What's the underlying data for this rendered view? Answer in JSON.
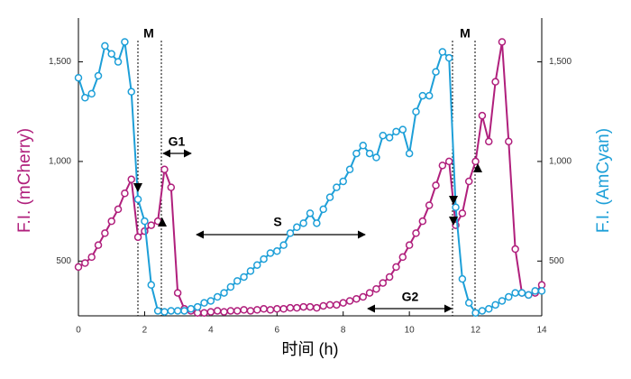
{
  "chart_data": {
    "type": "line",
    "xlabel": "时间 (h)",
    "ylabel": "F.I. (mCherry)",
    "y2label": "F.I. (AmCyan)",
    "annotations": [
      "M",
      "G1",
      "S",
      "G2",
      "M"
    ],
    "x": [
      0,
      0.2,
      0.4,
      0.6,
      0.8,
      1,
      1.2,
      1.4,
      1.6,
      1.8,
      2,
      2.2,
      2.4,
      2.6,
      2.8,
      3,
      3.2,
      3.4,
      3.6,
      3.8,
      4,
      4.2,
      4.4,
      4.6,
      4.8,
      5,
      5.2,
      5.4,
      5.6,
      5.8,
      6,
      6.2,
      6.4,
      6.6,
      6.8,
      7,
      7.2,
      7.4,
      7.6,
      7.8,
      8,
      8.2,
      8.4,
      8.6,
      8.8,
      9,
      9.2,
      9.4,
      9.6,
      9.8,
      10,
      10.2,
      10.4,
      10.6,
      10.8,
      11,
      11.2,
      11.4,
      11.6,
      11.8,
      12,
      12.2,
      12.4,
      12.6,
      12.8,
      13,
      13.2,
      13.4,
      13.6,
      13.8,
      14
    ],
    "series": [
      {
        "name": "mCherry",
        "color": "#b01f7c",
        "axis": "y",
        "values": [
          470,
          490,
          520,
          580,
          640,
          700,
          760,
          840,
          910,
          620,
          650,
          680,
          700,
          960,
          870,
          340,
          260,
          250,
          240,
          240,
          245,
          250,
          245,
          250,
          250,
          255,
          250,
          255,
          260,
          255,
          260,
          260,
          265,
          265,
          270,
          270,
          265,
          275,
          280,
          280,
          290,
          300,
          310,
          320,
          340,
          360,
          390,
          420,
          470,
          520,
          580,
          640,
          700,
          780,
          880,
          980,
          1000,
          680,
          740,
          900,
          1000,
          1230,
          1100,
          1400,
          1600,
          1100,
          560,
          340,
          330,
          340,
          380
        ]
      },
      {
        "name": "AmCyan",
        "color": "#1d9fd8",
        "axis": "y2",
        "values": [
          1420,
          1320,
          1340,
          1430,
          1580,
          1540,
          1500,
          1600,
          1350,
          810,
          700,
          380,
          250,
          245,
          250,
          250,
          250,
          260,
          270,
          290,
          300,
          320,
          340,
          370,
          400,
          420,
          450,
          480,
          510,
          540,
          550,
          580,
          640,
          670,
          690,
          740,
          690,
          760,
          820,
          870,
          900,
          960,
          1040,
          1080,
          1040,
          1020,
          1130,
          1120,
          1150,
          1160,
          1040,
          1250,
          1330,
          1330,
          1450,
          1550,
          1520,
          770,
          410,
          290,
          240,
          250,
          260,
          280,
          300,
          320,
          340,
          340,
          330,
          350,
          350
        ]
      }
    ],
    "xlim": [
      0,
      14
    ],
    "xticks": [
      0,
      2,
      4,
      6,
      8,
      10,
      12,
      14
    ],
    "ylim": [
      225,
      1720
    ],
    "yticks": [
      500,
      {
        "value": 1000,
        "label": "1,000"
      },
      {
        "value": 1500,
        "label": "1,500"
      }
    ],
    "y2lim": [
      225,
      1720
    ],
    "y2ticks": [
      500,
      {
        "value": 1000,
        "label": "1,000"
      },
      {
        "value": 1500,
        "label": "1,500"
      }
    ],
    "grid": false
  }
}
